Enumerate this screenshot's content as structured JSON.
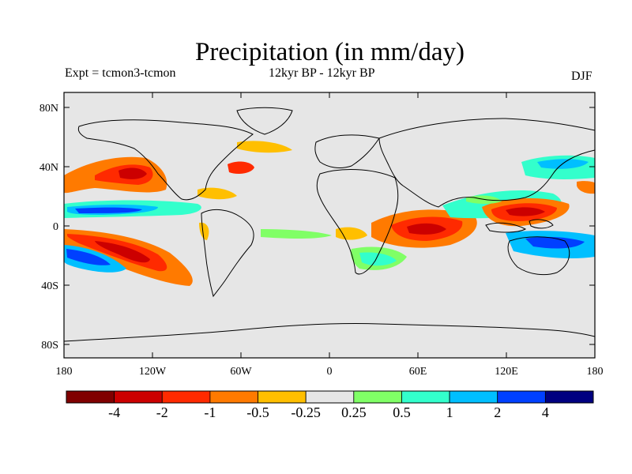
{
  "header": {
    "title": "Precipitation (in mm/day)",
    "expt_label": "Expt = tcmon3-tcmon",
    "period_label": "12kyr BP - 12kyr BP",
    "season_label": "DJF"
  },
  "axes": {
    "lat_ticks": [
      "80N",
      "40N",
      "0",
      "40S",
      "80S"
    ],
    "lon_ticks": [
      "180",
      "120W",
      "60W",
      "0",
      "60E",
      "120E",
      "180"
    ]
  },
  "colorbar": {
    "colors": [
      "#800000",
      "#cc0000",
      "#ff2a00",
      "#ff7a00",
      "#ffbf00",
      "#e6e6e6",
      "#80ff66",
      "#33ffcc",
      "#00bfff",
      "#0040ff",
      "#000080"
    ],
    "labels": [
      "-4",
      "-2",
      "-1",
      "-0.5",
      "-0.25",
      "0.25",
      "0.5",
      "1",
      "2",
      "4"
    ]
  },
  "colors": {
    "ocean_neutral": "#e6e6e6",
    "coastline": "#000000"
  }
}
